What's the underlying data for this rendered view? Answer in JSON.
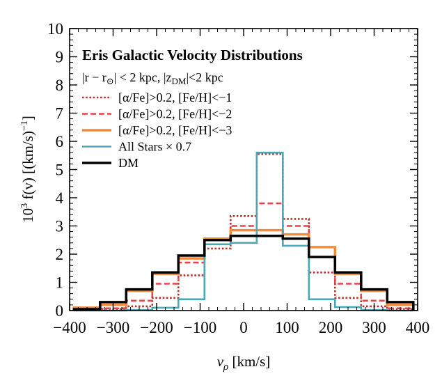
{
  "chart_data": {
    "type": "step-histogram",
    "title": "Eris Galactic Velocity Distributions",
    "selection": "|r − r⊙| < 2 kpc, |zDM|<2 kpc",
    "xlabel": "vρ [km/s]",
    "ylabel": "10³ f(v) [(km/s)⁻¹]",
    "xlim": [
      -400,
      400
    ],
    "ylim": [
      0,
      10
    ],
    "xticks": [
      -400,
      -300,
      -200,
      -100,
      0,
      100,
      200,
      300,
      400
    ],
    "xtick_labels": [
      "−400",
      "−300",
      "−200",
      "−100",
      "0",
      "100",
      "200",
      "300",
      "400"
    ],
    "yticks": [
      0,
      1,
      2,
      3,
      4,
      5,
      6,
      7,
      8,
      9,
      10
    ],
    "ytick_labels": [
      "0",
      "1",
      "2",
      "3",
      "4",
      "5",
      "6",
      "7",
      "8",
      "9",
      "10"
    ],
    "bin_edges": [
      -390,
      -330,
      -270,
      -210,
      -150,
      -90,
      -30,
      30,
      90,
      150,
      210,
      270,
      330,
      390
    ],
    "series": [
      {
        "name": "[α/Fe]>0.2, [Fe/H]<−1",
        "color": "#b5302b",
        "style": "dotted",
        "values": [
          0.02,
          0.05,
          0.15,
          0.45,
          1.25,
          2.2,
          3.35,
          5.55,
          3.25,
          1.35,
          0.45,
          0.15,
          0.05
        ]
      },
      {
        "name": "[α/Fe]>0.2, [Fe/H]<−2",
        "color": "#e5454a",
        "style": "dashed",
        "values": [
          0.02,
          0.08,
          0.35,
          0.95,
          1.7,
          2.5,
          3.0,
          3.8,
          3.0,
          1.9,
          0.95,
          0.35,
          0.08
        ]
      },
      {
        "name": "[α/Fe]>0.2, [Fe/H]<−3",
        "color": "#f68a3b",
        "style": "solid",
        "values": [
          0.1,
          0.2,
          0.7,
          1.3,
          1.85,
          2.55,
          2.85,
          2.85,
          2.7,
          2.25,
          1.3,
          0.7,
          0.2
        ]
      },
      {
        "name": "All Stars × 0.7",
        "color": "#4aa8b5",
        "style": "solid",
        "values": [
          0.0,
          0.0,
          0.02,
          0.1,
          0.4,
          2.35,
          2.4,
          5.6,
          2.3,
          0.4,
          0.12,
          0.02,
          0.0
        ]
      },
      {
        "name": "DM",
        "color": "#000000",
        "style": "solid",
        "values": [
          0.05,
          0.3,
          0.75,
          1.35,
          1.95,
          2.5,
          2.65,
          2.65,
          2.55,
          1.9,
          1.35,
          0.75,
          0.3
        ]
      }
    ]
  }
}
